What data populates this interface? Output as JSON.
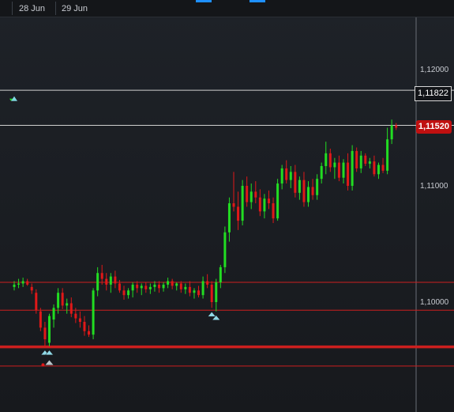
{
  "date_axis": [
    "28 Jun",
    "29 Jun"
  ],
  "price_axis": [
    "1,12000",
    "1,11000",
    "1,10000"
  ],
  "price_marker_upper": "1,11822",
  "price_marker_current": "1,11520",
  "colors": {
    "up": "#22dd22",
    "down": "#e01818",
    "level_line": "#cc1f1f",
    "accent": "#1e90ff"
  },
  "chart_data": {
    "type": "candlestick",
    "x_ticks": [
      "28 Jun",
      "29 Jun"
    ],
    "y_ticks": [
      1.12,
      1.11,
      1.1
    ],
    "ylim": [
      1.092,
      1.124
    ],
    "horizontal_levels": [
      1.11822,
      1.1152,
      1.1017,
      1.0993,
      1.0962,
      1.0961,
      1.0945
    ],
    "current_price": 1.1152,
    "candles": [
      [
        1.1013,
        1.1018,
        1.101,
        1.1015
      ],
      [
        1.1015,
        1.102,
        1.1012,
        1.1016
      ],
      [
        1.1016,
        1.1021,
        1.1013,
        1.1018
      ],
      [
        1.1018,
        1.102,
        1.1014,
        1.1015
      ],
      [
        1.1013,
        1.1016,
        1.1007,
        1.101
      ],
      [
        1.1008,
        1.1011,
        1.099,
        1.0993
      ],
      [
        1.0992,
        1.0995,
        1.0975,
        1.0978
      ],
      [
        1.0978,
        1.0983,
        1.0962,
        1.0968
      ],
      [
        1.0965,
        1.099,
        1.0962,
        1.0988
      ],
      [
        1.0985,
        1.0998,
        1.0978,
        1.0995
      ],
      [
        1.0995,
        1.1012,
        1.099,
        1.1008
      ],
      [
        1.1008,
        1.1012,
        1.0994,
        1.0997
      ],
      [
        1.0997,
        1.1003,
        1.099,
        1.0999
      ],
      [
        1.0999,
        1.1004,
        1.0987,
        1.099
      ],
      [
        1.099,
        1.0995,
        1.0982,
        1.0986
      ],
      [
        1.0986,
        1.0992,
        1.0978,
        1.0983
      ],
      [
        1.0983,
        1.0988,
        1.0971,
        1.0975
      ],
      [
        1.0975,
        1.098,
        1.097,
        1.0972
      ],
      [
        1.0972,
        1.1012,
        1.0968,
        1.101
      ],
      [
        1.101,
        1.103,
        1.1005,
        1.1025
      ],
      [
        1.1025,
        1.1032,
        1.1015,
        1.102
      ],
      [
        1.102,
        1.1025,
        1.101,
        1.1015
      ],
      [
        1.1015,
        1.1025,
        1.1008,
        1.1022
      ],
      [
        1.1022,
        1.1027,
        1.1012,
        1.1016
      ],
      [
        1.1016,
        1.1019,
        1.1008,
        1.101
      ],
      [
        1.101,
        1.1014,
        1.1002,
        1.1006
      ],
      [
        1.1006,
        1.1012,
        1.1003,
        1.101
      ],
      [
        1.101,
        1.1017,
        1.1004,
        1.1015
      ],
      [
        1.1015,
        1.1018,
        1.1008,
        1.1012
      ],
      [
        1.1012,
        1.1016,
        1.1006,
        1.1014
      ],
      [
        1.1014,
        1.1017,
        1.1008,
        1.1011
      ],
      [
        1.1011,
        1.1016,
        1.1007,
        1.1013
      ],
      [
        1.1013,
        1.1018,
        1.1009,
        1.1015
      ],
      [
        1.1015,
        1.1018,
        1.1008,
        1.1012
      ],
      [
        1.1012,
        1.1017,
        1.1009,
        1.1015
      ],
      [
        1.1015,
        1.1021,
        1.1012,
        1.1018
      ],
      [
        1.1018,
        1.102,
        1.1011,
        1.1014
      ],
      [
        1.1014,
        1.1017,
        1.101,
        1.1016
      ],
      [
        1.1016,
        1.1018,
        1.1008,
        1.1011
      ],
      [
        1.1011,
        1.1016,
        1.1007,
        1.1013
      ],
      [
        1.1013,
        1.1018,
        1.1005,
        1.1008
      ],
      [
        1.1008,
        1.1012,
        1.1003,
        1.101
      ],
      [
        1.101,
        1.1014,
        1.1004,
        1.1006
      ],
      [
        1.1006,
        1.1022,
        1.1003,
        1.1018
      ],
      [
        1.1018,
        1.1024,
        1.1012,
        1.1015
      ],
      [
        1.1015,
        1.1018,
        1.0995,
        1.1
      ],
      [
        1.1,
        1.102,
        1.0992,
        1.1017
      ],
      [
        1.1017,
        1.1032,
        1.1012,
        1.103
      ],
      [
        1.103,
        1.1065,
        1.1025,
        1.106
      ],
      [
        1.106,
        1.109,
        1.1052,
        1.1085
      ],
      [
        1.1085,
        1.1112,
        1.1078,
        1.1082
      ],
      [
        1.1082,
        1.1095,
        1.1062,
        1.107
      ],
      [
        1.107,
        1.1105,
        1.1066,
        1.11
      ],
      [
        1.11,
        1.1108,
        1.1082,
        1.1086
      ],
      [
        1.1086,
        1.1102,
        1.108,
        1.1095
      ],
      [
        1.1095,
        1.1104,
        1.1085,
        1.109
      ],
      [
        1.109,
        1.1097,
        1.1074,
        1.1078
      ],
      [
        1.1078,
        1.1093,
        1.1072,
        1.1089
      ],
      [
        1.1089,
        1.1096,
        1.108,
        1.1085
      ],
      [
        1.1085,
        1.109,
        1.1068,
        1.1072
      ],
      [
        1.1072,
        1.1106,
        1.107,
        1.1102
      ],
      [
        1.1102,
        1.1118,
        1.1097,
        1.1115
      ],
      [
        1.1115,
        1.1122,
        1.1102,
        1.1105
      ],
      [
        1.1105,
        1.1117,
        1.1098,
        1.1112
      ],
      [
        1.1112,
        1.1118,
        1.109,
        1.1094
      ],
      [
        1.1094,
        1.1108,
        1.1088,
        1.1105
      ],
      [
        1.1105,
        1.1112,
        1.1082,
        1.1086
      ],
      [
        1.1086,
        1.1104,
        1.1082,
        1.1099
      ],
      [
        1.1099,
        1.1106,
        1.1088,
        1.1092
      ],
      [
        1.1092,
        1.111,
        1.1088,
        1.1106
      ],
      [
        1.1106,
        1.112,
        1.1102,
        1.1117
      ],
      [
        1.1117,
        1.1138,
        1.111,
        1.1128
      ],
      [
        1.1128,
        1.1132,
        1.1112,
        1.1116
      ],
      [
        1.1116,
        1.1124,
        1.1106,
        1.112
      ],
      [
        1.112,
        1.1126,
        1.1104,
        1.1107
      ],
      [
        1.1107,
        1.1123,
        1.1102,
        1.112
      ],
      [
        1.112,
        1.1128,
        1.1096,
        1.11
      ],
      [
        1.11,
        1.1135,
        1.1096,
        1.113
      ],
      [
        1.113,
        1.1133,
        1.1112,
        1.1115
      ],
      [
        1.1115,
        1.113,
        1.1111,
        1.1126
      ],
      [
        1.1126,
        1.1128,
        1.1117,
        1.1119
      ],
      [
        1.1119,
        1.1124,
        1.1115,
        1.1121
      ],
      [
        1.1121,
        1.1126,
        1.1108,
        1.111
      ],
      [
        1.111,
        1.112,
        1.1106,
        1.1118
      ],
      [
        1.1118,
        1.1124,
        1.1111,
        1.1113
      ],
      [
        1.1113,
        1.115,
        1.111,
        1.114
      ],
      [
        1.114,
        1.1157,
        1.1136,
        1.1152
      ],
      [
        1.1152,
        1.1154,
        1.1148,
        1.115
      ]
    ],
    "signals": [
      {
        "kind": "green-arrow",
        "candle": 0
      },
      {
        "kind": "cyan-triangle",
        "candle": 7
      },
      {
        "kind": "cyan-triangle",
        "candle": 8
      },
      {
        "kind": "cyan-triangle",
        "candle": 45
      },
      {
        "kind": "cyan-triangle",
        "candle": 46
      }
    ]
  }
}
